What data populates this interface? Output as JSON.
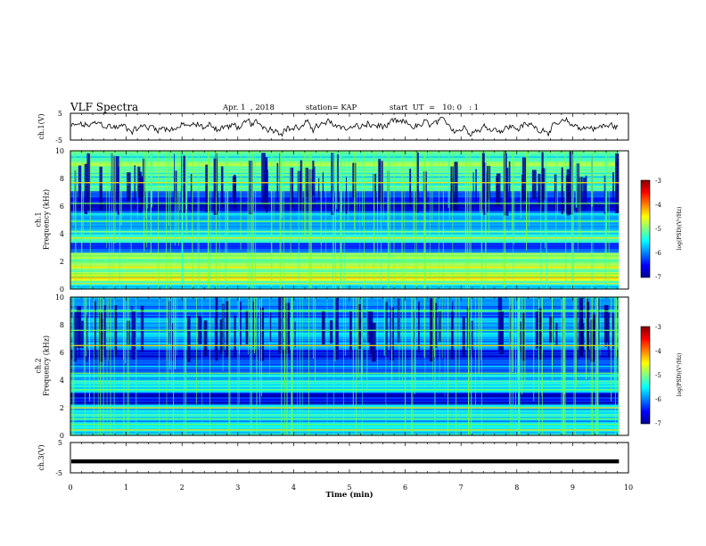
{
  "header": {
    "title": "VLF Spectra",
    "date": "Apr. 1  , 2018",
    "station": "station= KAP",
    "start": "start  UT  =   10: 0   : 1"
  },
  "chart_data": [
    {
      "type": "line",
      "name": "ch1-waveform",
      "ylabel": "ch.1(V)",
      "ylim": [
        -5,
        5
      ],
      "yticks": [
        "5",
        "-5"
      ],
      "xlim": [
        0,
        10
      ],
      "x_end": 9.83,
      "description_of_data": "noisy waveform around 0 V, amplitude about ±2 V"
    },
    {
      "type": "heatmap",
      "name": "ch1-spectrogram",
      "ylabel": "ch.1\nFrequency (kHz)",
      "ylim": [
        0,
        10
      ],
      "yticks": [
        "0",
        "2",
        "4",
        "6",
        "8",
        "10"
      ],
      "xlim": [
        0,
        10
      ],
      "x_end": 9.83,
      "colorbar": {
        "label": "log(PSD)(V²/Hz)",
        "range": [
          -7,
          -3
        ],
        "ticks": [
          "-3",
          "-4",
          "-5",
          "-6",
          "-7"
        ]
      },
      "bands": [
        {
          "from": 0,
          "to": 0.5,
          "level": -5.5
        },
        {
          "from": 0.5,
          "to": 1.2,
          "level": -4.6
        },
        {
          "from": 1.2,
          "to": 2.6,
          "level": -4.9
        },
        {
          "from": 2.6,
          "to": 3.3,
          "level": -6.2
        },
        {
          "from": 3.3,
          "to": 4.3,
          "level": -5.3
        },
        {
          "from": 4.3,
          "to": 5.5,
          "level": -5.8
        },
        {
          "from": 5.5,
          "to": 7.0,
          "level": -6.4
        },
        {
          "from": 7.0,
          "to": 10.0,
          "level": -5.2
        }
      ],
      "lines_khz": [
        0.4,
        0.9,
        1.1,
        1.6,
        2.0,
        2.4,
        3.7,
        4.9,
        6.2,
        7.7
      ]
    },
    {
      "type": "heatmap",
      "name": "ch2-spectrogram",
      "ylabel": "ch.2\nFrequency (kHz)",
      "ylim": [
        0,
        10
      ],
      "yticks": [
        "0",
        "2",
        "4",
        "6",
        "8",
        "10"
      ],
      "xlim": [
        0,
        10
      ],
      "x_end": 9.83,
      "colorbar": {
        "label": "log(PSD)(V²/Hz)",
        "range": [
          -7,
          -3
        ],
        "ticks": [
          "-3",
          "-4",
          "-5",
          "-6",
          "-7"
        ]
      },
      "bands": [
        {
          "from": 0,
          "to": 0.6,
          "level": -5.6
        },
        {
          "from": 0.6,
          "to": 2.2,
          "level": -5.6
        },
        {
          "from": 2.2,
          "to": 3.1,
          "level": -6.6
        },
        {
          "from": 3.1,
          "to": 4.4,
          "level": -5.6
        },
        {
          "from": 4.4,
          "to": 5.5,
          "level": -6.0
        },
        {
          "from": 5.5,
          "to": 6.2,
          "level": -6.7
        },
        {
          "from": 6.2,
          "to": 7.8,
          "level": -5.7
        },
        {
          "from": 7.8,
          "to": 10.0,
          "level": -5.9
        }
      ],
      "lines_khz": [
        0.4,
        0.8,
        1.2,
        2.0,
        3.3,
        4.5,
        6.5,
        7.6,
        9.0
      ]
    },
    {
      "type": "line",
      "name": "ch3-waveform",
      "ylabel": "ch.3(V)",
      "ylim": [
        -5,
        5
      ],
      "yticks": [
        "5",
        "-5"
      ],
      "xlim": [
        0,
        10
      ],
      "x_end": 9.83,
      "value": -1.2,
      "xlabel": "Time  (min)",
      "xticks": [
        "0",
        "1",
        "2",
        "3",
        "4",
        "5",
        "6",
        "7",
        "8",
        "9",
        "10"
      ]
    }
  ]
}
